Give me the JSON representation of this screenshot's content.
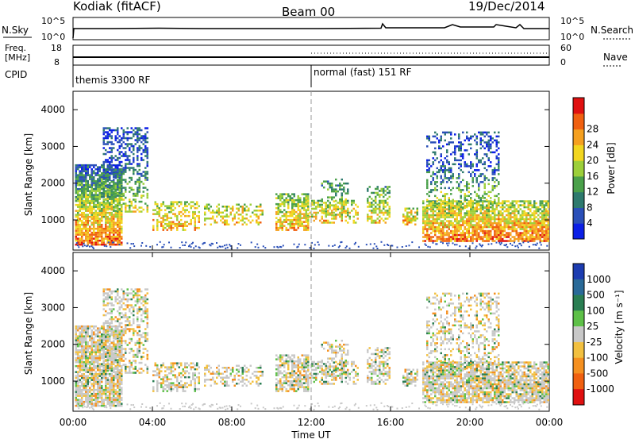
{
  "header": {
    "station": "Kodiak (fitACF)",
    "beam": "Beam 00",
    "date": "19/Dec/2014"
  },
  "panels": {
    "nsky_label": "N.Sky",
    "nsearch_label": "N.Search",
    "freq_label_1": "Freq.",
    "freq_label_2": "[MHz]",
    "nave_label": "Nave",
    "cpid_label": "CPID",
    "nsky_ticks": [
      "10^5",
      "10^0"
    ],
    "nsearch_ticks": [
      "10^5",
      "10^0"
    ],
    "freq_ticks": [
      "18",
      "8"
    ],
    "nave_ticks": [
      "60",
      "0"
    ],
    "cpid_segments": [
      {
        "label": "themis 3300 RF",
        "start_hour": 0
      },
      {
        "label": "normal (fast) 151 RF",
        "start_hour": 12
      }
    ]
  },
  "chart_data": [
    {
      "type": "heatmap",
      "name": "power",
      "ylabel": "Slant Range [km]",
      "ylim": [
        180,
        4500
      ],
      "yticks": [
        1000,
        2000,
        3000,
        4000
      ],
      "xlim": [
        0,
        24
      ],
      "colorbar_label": "Power [dB]",
      "colorbar_ticks": [
        "4",
        "8",
        "12",
        "16",
        "20",
        "24",
        "28"
      ],
      "colorscale": [
        "#0b1fe6",
        "#2a4fb8",
        "#2e7a6e",
        "#4aa04a",
        "#9ccf3a",
        "#f2d61f",
        "#f5a020",
        "#f06010",
        "#e01010"
      ],
      "marker_hour": 12
    },
    {
      "type": "heatmap",
      "name": "velocity",
      "ylabel": "Slant Range [km]",
      "ylim": [
        180,
        4500
      ],
      "yticks": [
        1000,
        2000,
        3000,
        4000
      ],
      "xlim": [
        0,
        24
      ],
      "xlabel": "Time UT",
      "xticks": [
        "00:00",
        "04:00",
        "08:00",
        "12:00",
        "16:00",
        "20:00",
        "00:00"
      ],
      "colorbar_label": "Velocity [m s⁻¹]",
      "colorbar_ticks": [
        "1000",
        "500",
        "100",
        "25",
        "-25",
        "-100",
        "-500",
        "-1000"
      ],
      "colorscale": [
        "#1c3cb0",
        "#2a6a98",
        "#2a7e52",
        "#5ec048",
        "#c8c8c8",
        "#f2c040",
        "#f59020",
        "#f06010",
        "#e01010"
      ],
      "marker_hour": 12
    }
  ]
}
